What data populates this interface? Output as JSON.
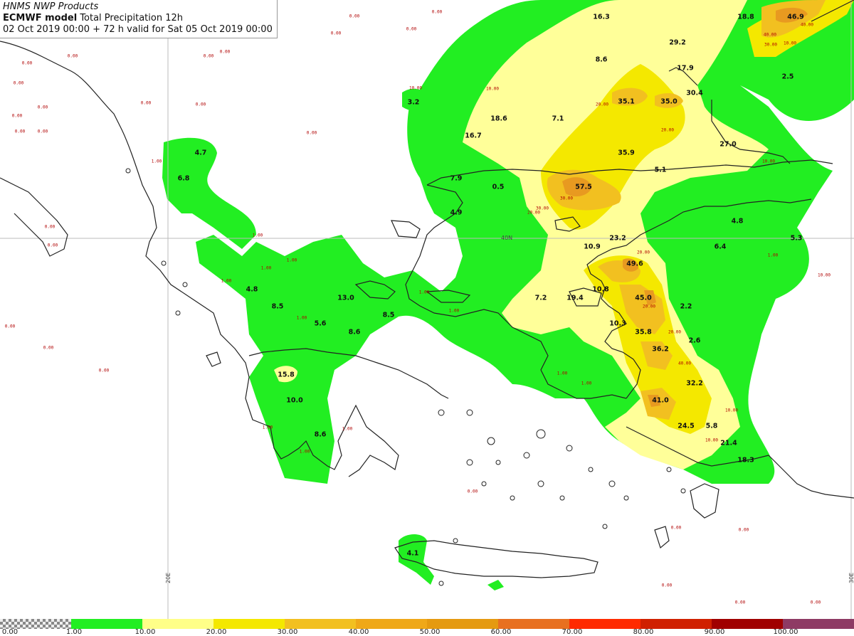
{
  "header": {
    "line1": "HNMS NWP Products",
    "line2_bold": "ECMWF model",
    "line2_rest": "Total Precipitation 12h",
    "line3": "02 Oct 2019 00:00 + 72 h valid for Sat 05 Oct 2019 00:00"
  },
  "colors": {
    "green": "#22ee22",
    "light_yellow": "#ffff99",
    "yellow": "#f4e800",
    "orange_light": "#f2c020",
    "orange": "#e89a20",
    "coast": "#222222",
    "zero_label": "#b00000"
  },
  "graticule": {
    "lon_20": "20E",
    "lon_30": "30E",
    "lat_40": "40N"
  },
  "values": [
    {
      "t": "16.3"
    },
    {
      "t": "18.8"
    },
    {
      "t": "46.9"
    },
    {
      "t": "29.2"
    },
    {
      "t": "8.6"
    },
    {
      "t": "17.9"
    },
    {
      "t": "2.5"
    },
    {
      "t": "30.4"
    },
    {
      "t": "3.2"
    },
    {
      "t": "35.1"
    },
    {
      "t": "35.0"
    },
    {
      "t": "18.6"
    },
    {
      "t": "7.1"
    },
    {
      "t": "16.7"
    },
    {
      "t": "27.0"
    },
    {
      "t": "4.7"
    },
    {
      "t": "35.9"
    },
    {
      "t": "6.8"
    },
    {
      "t": "5.1"
    },
    {
      "t": "7.9"
    },
    {
      "t": "0.5"
    },
    {
      "t": "57.5"
    },
    {
      "t": "4.9"
    },
    {
      "t": "4.8"
    },
    {
      "t": "23.2"
    },
    {
      "t": "5.3"
    },
    {
      "t": "10.9"
    },
    {
      "t": "6.4"
    },
    {
      "t": "49.6"
    },
    {
      "t": "4.8"
    },
    {
      "t": "13.0"
    },
    {
      "t": "7.2"
    },
    {
      "t": "19.4"
    },
    {
      "t": "10.8"
    },
    {
      "t": "45.0"
    },
    {
      "t": "8.5"
    },
    {
      "t": "8.5"
    },
    {
      "t": "2.2"
    },
    {
      "t": "5.6"
    },
    {
      "t": "10.3"
    },
    {
      "t": "8.6"
    },
    {
      "t": "35.8"
    },
    {
      "t": "2.6"
    },
    {
      "t": "36.2"
    },
    {
      "t": "15.8"
    },
    {
      "t": "32.2"
    },
    {
      "t": "10.0"
    },
    {
      "t": "41.0"
    },
    {
      "t": "24.5"
    },
    {
      "t": "5.8"
    },
    {
      "t": "8.6"
    },
    {
      "t": "21.4"
    },
    {
      "t": "18.3"
    },
    {
      "t": "4.1"
    }
  ],
  "small_labels": [
    {
      "t": "0.00"
    },
    {
      "t": "0.00"
    },
    {
      "t": "0.00"
    },
    {
      "t": "0.00"
    },
    {
      "t": "0.00"
    },
    {
      "t": "0.00"
    },
    {
      "t": "0.00"
    },
    {
      "t": "0.00"
    },
    {
      "t": "0.00"
    },
    {
      "t": "0.00"
    },
    {
      "t": "0.00"
    },
    {
      "t": "0.00"
    },
    {
      "t": "0.00"
    },
    {
      "t": "0.00"
    },
    {
      "t": "0.00"
    },
    {
      "t": "0.00"
    },
    {
      "t": "0.00"
    },
    {
      "t": "0.00"
    },
    {
      "t": "0.00"
    },
    {
      "t": "0.00"
    },
    {
      "t": "0.00"
    },
    {
      "t": "0.00"
    },
    {
      "t": "0.00"
    },
    {
      "t": "0.00"
    },
    {
      "t": "0.00"
    },
    {
      "t": "0.00"
    },
    {
      "t": "0.00"
    },
    {
      "t": "1.00"
    },
    {
      "t": "1.00"
    },
    {
      "t": "1.00"
    },
    {
      "t": "1.00"
    },
    {
      "t": "1.00"
    },
    {
      "t": "1.00"
    },
    {
      "t": "1.00"
    },
    {
      "t": "1.00"
    },
    {
      "t": "1.00"
    },
    {
      "t": "1.00"
    },
    {
      "t": "1.00"
    },
    {
      "t": "1.00"
    },
    {
      "t": "1.00"
    },
    {
      "t": "1.00"
    },
    {
      "t": "10.00"
    },
    {
      "t": "10.00"
    },
    {
      "t": "10.00"
    },
    {
      "t": "20.00"
    },
    {
      "t": "20.00"
    },
    {
      "t": "20.00"
    },
    {
      "t": "20.00"
    },
    {
      "t": "20.00"
    },
    {
      "t": "20.00"
    },
    {
      "t": "40.00"
    },
    {
      "t": "30.00"
    },
    {
      "t": "30.00"
    },
    {
      "t": "40.00"
    },
    {
      "t": "40.00"
    },
    {
      "t": "30.00"
    },
    {
      "t": "10.00"
    },
    {
      "t": "10.00"
    },
    {
      "t": "10.00"
    },
    {
      "t": "10.00"
    }
  ],
  "legend": {
    "labels": [
      "0.00",
      "1.00",
      "10.00",
      "20.00",
      "30.00",
      "40.00",
      "50.00",
      "60.00",
      "70.00",
      "80.00",
      "90.00",
      "100.00"
    ],
    "colors": [
      "checker",
      "#22ee22",
      "#ffff88",
      "#f4e800",
      "#f2c020",
      "#efa818",
      "#e59a10",
      "#e87020",
      "#ff2a00",
      "#d02000",
      "#a00000",
      "#8e3a64"
    ]
  }
}
